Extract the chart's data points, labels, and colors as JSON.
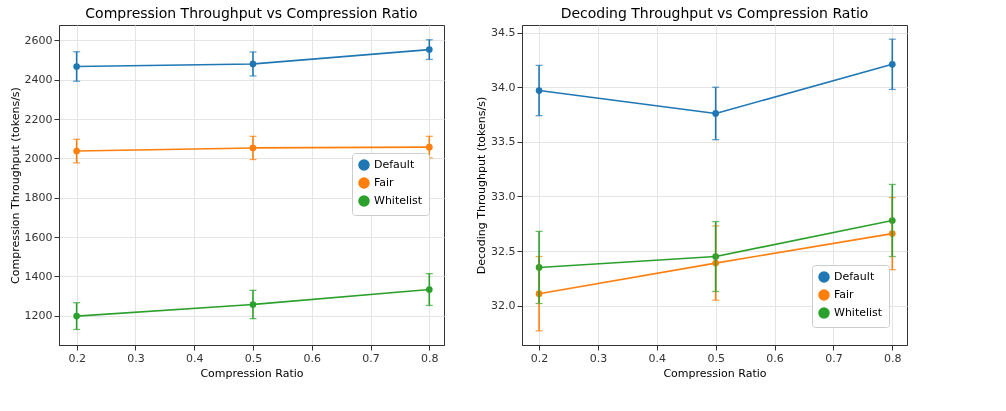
{
  "chart_data": [
    {
      "type": "line",
      "title": "Compression Throughput vs Compression Ratio",
      "xlabel": "Compression Ratio",
      "ylabel": "Compression Throughput (tokens/s)",
      "x": [
        0.2,
        0.5,
        0.8
      ],
      "series": [
        {
          "name": "Default",
          "color": "#1f77b4",
          "values": [
            2467,
            2480,
            2553
          ],
          "errors": [
            75,
            61,
            50
          ]
        },
        {
          "name": "Fair",
          "color": "#ff7f0e",
          "values": [
            2037,
            2053,
            2057
          ],
          "errors": [
            60,
            59,
            55
          ]
        },
        {
          "name": "Whitelist",
          "color": "#2ca02c",
          "values": [
            1198,
            1257,
            1333
          ],
          "errors": [
            68,
            72,
            81
          ]
        }
      ],
      "xlim": [
        0.17,
        0.825
      ],
      "ylim": [
        1051,
        2678
      ],
      "xticks": [
        0.2,
        0.3,
        0.4,
        0.5,
        0.6,
        0.7,
        0.8
      ],
      "yticks": [
        1200,
        1400,
        1600,
        1800,
        2000,
        2200,
        2400,
        2600
      ],
      "grid": true,
      "legend": "right",
      "marker": "circle"
    },
    {
      "type": "line",
      "title": "Decoding Throughput vs Compression Ratio",
      "xlabel": "Compression Ratio",
      "ylabel": "Decoding Throughput (tokens/s)",
      "x": [
        0.2,
        0.5,
        0.8
      ],
      "series": [
        {
          "name": "Default",
          "color": "#1f77b4",
          "values": [
            33.97,
            33.76,
            34.21
          ],
          "errors": [
            0.23,
            0.24,
            0.23
          ]
        },
        {
          "name": "Fair",
          "color": "#ff7f0e",
          "values": [
            32.11,
            32.39,
            32.66
          ],
          "errors": [
            0.34,
            0.34,
            0.33
          ]
        },
        {
          "name": "Whitelist",
          "color": "#2ca02c",
          "values": [
            32.35,
            32.45,
            32.78
          ],
          "errors": [
            0.33,
            0.32,
            0.33
          ]
        }
      ],
      "xlim": [
        0.171,
        0.825
      ],
      "ylim": [
        31.64,
        34.57
      ],
      "xticks": [
        0.2,
        0.3,
        0.4,
        0.5,
        0.6,
        0.7,
        0.8
      ],
      "yticks": [
        {
          "value": 32,
          "label": "32.0"
        },
        32.5,
        {
          "value": 33,
          "label": "33.0"
        },
        33.5,
        {
          "value": 34,
          "label": "34.0"
        },
        34.5
      ],
      "grid": true,
      "legend": "bottom right",
      "marker": "circle"
    }
  ]
}
